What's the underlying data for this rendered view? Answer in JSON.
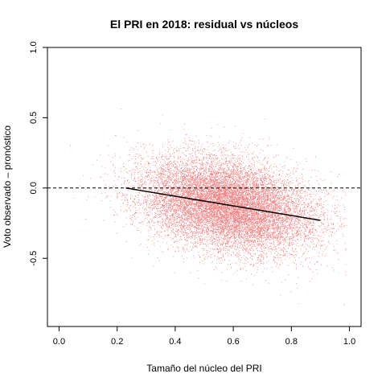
{
  "chart_data": {
    "type": "scatter",
    "title": "El PRI en 2018: residual vs núcleos",
    "xlabel": "Tamaño del núcleo del PRI",
    "ylabel": "Voto observado – pronóstico",
    "xlim": [
      -0.04,
      1.04
    ],
    "ylim": [
      -0.985,
      1.0
    ],
    "xticks": [
      0.0,
      0.2,
      0.4,
      0.6,
      0.8,
      1.0
    ],
    "xtick_labels": [
      "0.0",
      "0.2",
      "0.4",
      "0.6",
      "0.8",
      "1.0"
    ],
    "yticks": [
      -0.5,
      0.0,
      0.5,
      1.0
    ],
    "ytick_labels": [
      "-0.5",
      "0.0",
      "0.5",
      "1.0"
    ],
    "grid": false,
    "reference_line": {
      "y": 0,
      "style": "dashed"
    },
    "fit_line": {
      "x": [
        0.23,
        0.9
      ],
      "y": [
        0.0,
        -0.23
      ]
    },
    "point_cloud": {
      "description_of_shape": "dense cloud of precincts, centered near residual -0.1, spreading from x≈0.2 to x≈0.95",
      "n_points": 14000,
      "x_mean": 0.58,
      "x_sd": 0.15,
      "x_range": [
        0.02,
        0.99
      ],
      "residual_slope": -0.34,
      "residual_intercept": 0.078,
      "residual_sd": 0.16
    },
    "colors": {
      "points": "#e41a1c",
      "fit_line": "#000000",
      "reference_line": "#000000",
      "axes": "#000000"
    }
  }
}
